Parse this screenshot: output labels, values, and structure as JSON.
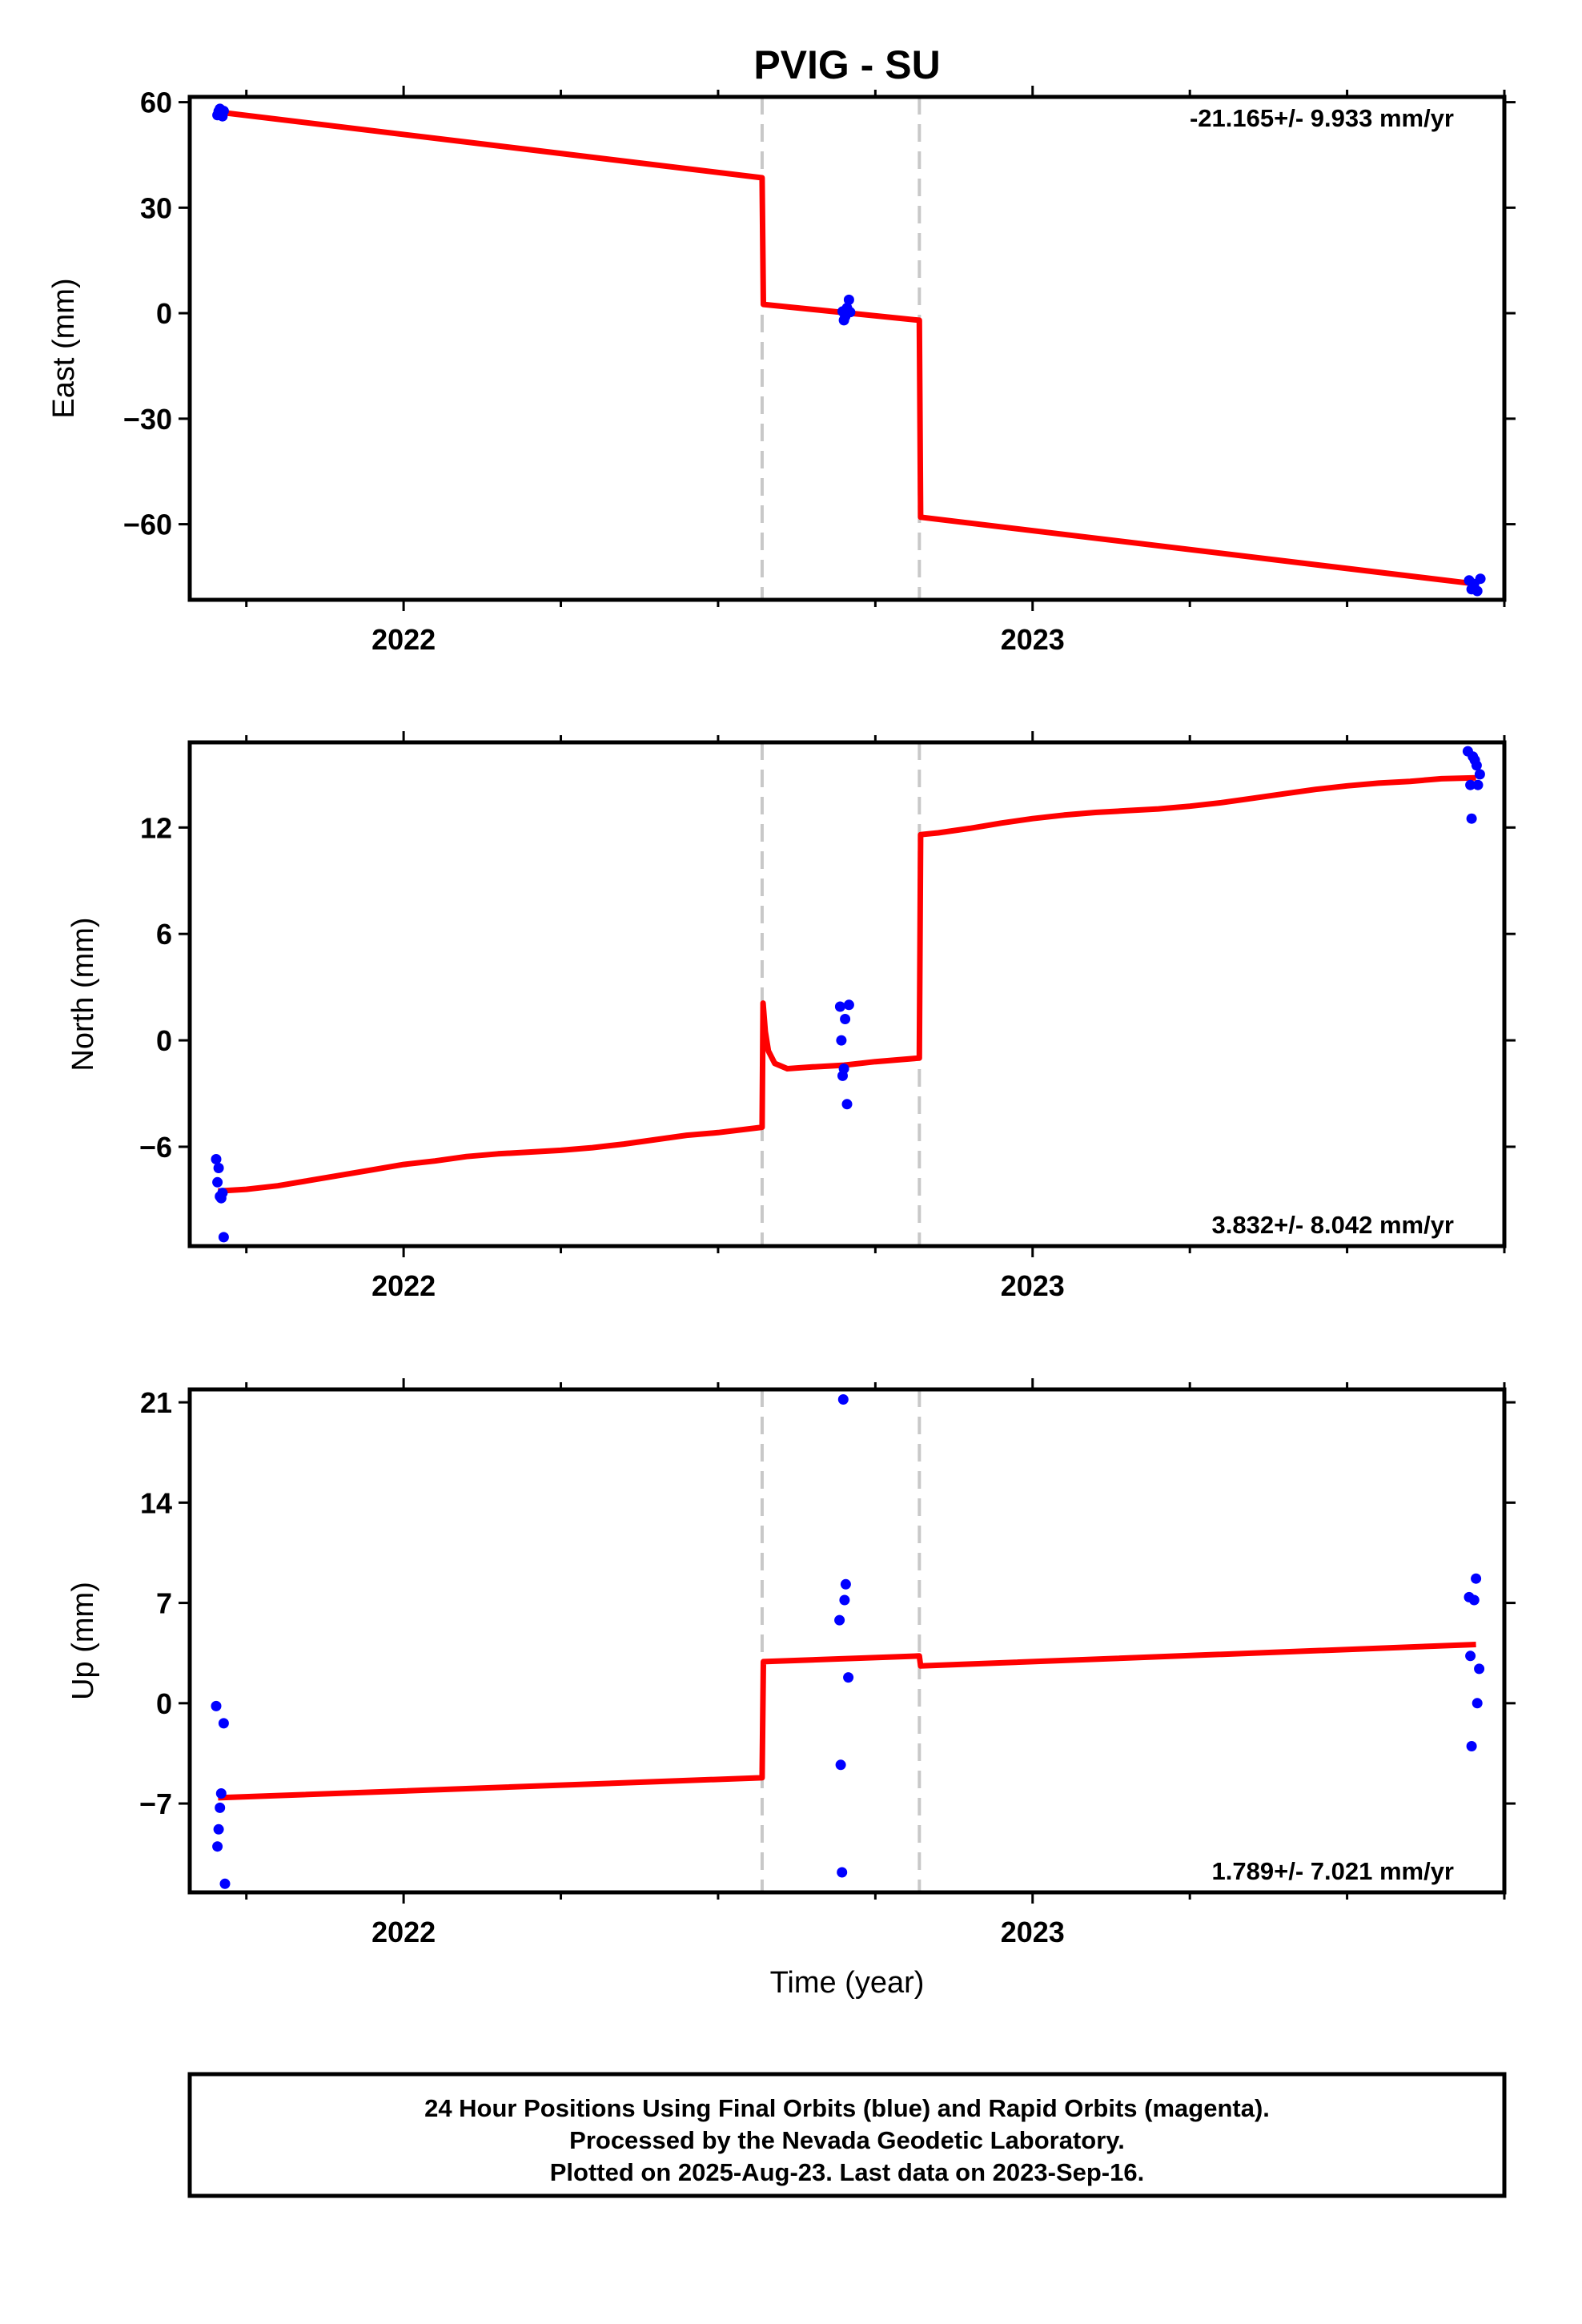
{
  "chart_data": [
    {
      "type": "scatter",
      "title": "PVIG - SU",
      "xlabel": "",
      "ylabel": "East (mm)",
      "xlim": [
        2021.66,
        2023.75
      ],
      "ylim": [
        -81.5,
        61.5
      ],
      "yticks": [
        60,
        30,
        0,
        -30,
        -60
      ],
      "xticks": [
        2022,
        2023
      ],
      "xtick_labels": [
        "2022",
        "2023"
      ],
      "rate_text": "-21.165+/- 9.933 mm/yr",
      "rate_position": "top-right",
      "offsets": [
        2022.57,
        2022.82
      ],
      "series": [
        {
          "role": "model",
          "color": "#ff0000",
          "points": [
            [
              2021.705,
              57.2
            ],
            [
              2022.57,
              38.5
            ],
            [
              2022.572,
              2.5
            ],
            [
              2022.82,
              -2.0
            ],
            [
              2022.822,
              -58.0
            ],
            [
              2023.705,
              -77.0
            ]
          ]
        },
        {
          "role": "final-orbits",
          "color": "#0000ff",
          "points": [
            [
              2021.704,
              56.3
            ],
            [
              2021.706,
              57.4
            ],
            [
              2021.708,
              58.1
            ],
            [
              2021.71,
              56.8
            ],
            [
              2021.712,
              56.0
            ],
            [
              2021.714,
              57.5
            ],
            [
              2022.698,
              0.5
            ],
            [
              2022.7,
              -2.0
            ],
            [
              2022.702,
              -1.0
            ],
            [
              2022.705,
              1.5
            ],
            [
              2022.708,
              3.8
            ],
            [
              2022.71,
              0.3
            ],
            [
              2023.694,
              -76.0
            ],
            [
              2023.698,
              -78.5
            ],
            [
              2023.702,
              -77.0
            ],
            [
              2023.707,
              -79.0
            ],
            [
              2023.712,
              -75.5
            ]
          ]
        }
      ]
    },
    {
      "type": "scatter",
      "xlabel": "",
      "ylabel": "North (mm)",
      "xlim": [
        2021.66,
        2023.75
      ],
      "ylim": [
        -11.6,
        16.8
      ],
      "yticks": [
        12,
        6,
        0,
        -6
      ],
      "xticks": [
        2022,
        2023
      ],
      "xtick_labels": [
        "2022",
        "2023"
      ],
      "rate_text": "3.832+/- 8.042 mm/yr",
      "rate_position": "bottom-right",
      "offsets": [
        2022.57,
        2022.82
      ],
      "series": [
        {
          "role": "model",
          "color": "#ff0000",
          "points": [
            [
              2021.705,
              -8.5
            ],
            [
              2021.75,
              -8.4
            ],
            [
              2021.8,
              -8.2
            ],
            [
              2021.85,
              -7.9
            ],
            [
              2021.9,
              -7.6
            ],
            [
              2021.95,
              -7.3
            ],
            [
              2022.0,
              -7.0
            ],
            [
              2022.05,
              -6.8
            ],
            [
              2022.1,
              -6.55
            ],
            [
              2022.15,
              -6.4
            ],
            [
              2022.2,
              -6.3
            ],
            [
              2022.25,
              -6.2
            ],
            [
              2022.3,
              -6.05
            ],
            [
              2022.35,
              -5.85
            ],
            [
              2022.4,
              -5.6
            ],
            [
              2022.45,
              -5.35
            ],
            [
              2022.5,
              -5.2
            ],
            [
              2022.57,
              -4.9
            ],
            [
              2022.5715,
              2.1
            ],
            [
              2022.575,
              0.5
            ],
            [
              2022.58,
              -0.6
            ],
            [
              2022.59,
              -1.3
            ],
            [
              2022.61,
              -1.6
            ],
            [
              2022.65,
              -1.5
            ],
            [
              2022.7,
              -1.4
            ],
            [
              2022.75,
              -1.2
            ],
            [
              2022.82,
              -1.0
            ],
            [
              2022.822,
              11.6
            ],
            [
              2022.85,
              11.7
            ],
            [
              2022.9,
              11.95
            ],
            [
              2022.95,
              12.25
            ],
            [
              2023.0,
              12.5
            ],
            [
              2023.05,
              12.7
            ],
            [
              2023.1,
              12.85
            ],
            [
              2023.15,
              12.95
            ],
            [
              2023.2,
              13.05
            ],
            [
              2023.25,
              13.2
            ],
            [
              2023.3,
              13.4
            ],
            [
              2023.35,
              13.65
            ],
            [
              2023.4,
              13.9
            ],
            [
              2023.45,
              14.15
            ],
            [
              2023.5,
              14.35
            ],
            [
              2023.55,
              14.5
            ],
            [
              2023.6,
              14.6
            ],
            [
              2023.65,
              14.75
            ],
            [
              2023.705,
              14.8
            ]
          ]
        },
        {
          "role": "final-orbits",
          "color": "#0000ff",
          "points": [
            [
              2021.702,
              -6.7
            ],
            [
              2021.704,
              -8.0
            ],
            [
              2021.706,
              -7.2
            ],
            [
              2021.708,
              -8.8
            ],
            [
              2021.71,
              -8.9
            ],
            [
              2021.712,
              -8.6
            ],
            [
              2021.714,
              -11.1
            ],
            [
              2022.694,
              1.9
            ],
            [
              2022.696,
              0.0
            ],
            [
              2022.698,
              -2.0
            ],
            [
              2022.7,
              -1.6
            ],
            [
              2022.702,
              1.2
            ],
            [
              2022.705,
              -3.6
            ],
            [
              2022.708,
              2.0
            ],
            [
              2023.692,
              16.3
            ],
            [
              2023.696,
              14.4
            ],
            [
              2023.698,
              12.5
            ],
            [
              2023.7,
              16.0
            ],
            [
              2023.703,
              15.8
            ],
            [
              2023.706,
              15.5
            ],
            [
              2023.708,
              14.4
            ],
            [
              2023.711,
              15.0
            ]
          ]
        }
      ]
    },
    {
      "type": "scatter",
      "xlabel": "Time (year)",
      "ylabel": "Up (mm)",
      "xlim": [
        2021.66,
        2023.75
      ],
      "ylim": [
        -13.2,
        21.9
      ],
      "yticks": [
        21,
        14,
        7,
        0,
        -7
      ],
      "xticks": [
        2022,
        2023
      ],
      "xtick_labels": [
        "2022",
        "2023"
      ],
      "rate_text": "1.789+/- 7.021 mm/yr",
      "rate_position": "bottom-right",
      "offsets": [
        2022.57,
        2022.82
      ],
      "series": [
        {
          "role": "model",
          "color": "#ff0000",
          "points": [
            [
              2021.705,
              -6.6
            ],
            [
              2022.57,
              -5.2
            ],
            [
              2022.572,
              2.9
            ],
            [
              2022.82,
              3.3
            ],
            [
              2022.822,
              2.6
            ],
            [
              2023.705,
              4.1
            ]
          ]
        },
        {
          "role": "final-orbits",
          "color": "#0000ff",
          "points": [
            [
              2021.702,
              -0.2
            ],
            [
              2021.704,
              -10.0
            ],
            [
              2021.706,
              -8.8
            ],
            [
              2021.708,
              -7.3
            ],
            [
              2021.71,
              -6.3
            ],
            [
              2021.714,
              -1.4
            ],
            [
              2021.716,
              -12.6
            ],
            [
              2022.693,
              5.8
            ],
            [
              2022.695,
              -4.3
            ],
            [
              2022.697,
              -11.8
            ],
            [
              2022.699,
              21.2
            ],
            [
              2022.701,
              7.2
            ],
            [
              2022.703,
              8.3
            ],
            [
              2022.707,
              1.8
            ],
            [
              2023.694,
              7.4
            ],
            [
              2023.696,
              3.3
            ],
            [
              2023.698,
              -3.0
            ],
            [
              2023.702,
              7.2
            ],
            [
              2023.705,
              8.7
            ],
            [
              2023.707,
              0.0
            ],
            [
              2023.71,
              2.4
            ]
          ]
        }
      ]
    }
  ],
  "footer": {
    "line1": "24 Hour Positions Using Final Orbits (blue) and Rapid Orbits (magenta).",
    "line2": "Processed by the Nevada Geodetic Laboratory.",
    "line3": "Plotted on 2025-Aug-23. Last data on 2023-Sep-16."
  },
  "colors": {
    "model": "#ff0000",
    "final_orbits": "#0000ff",
    "offset_line": "#c8c8c8",
    "frame": "#000000"
  }
}
